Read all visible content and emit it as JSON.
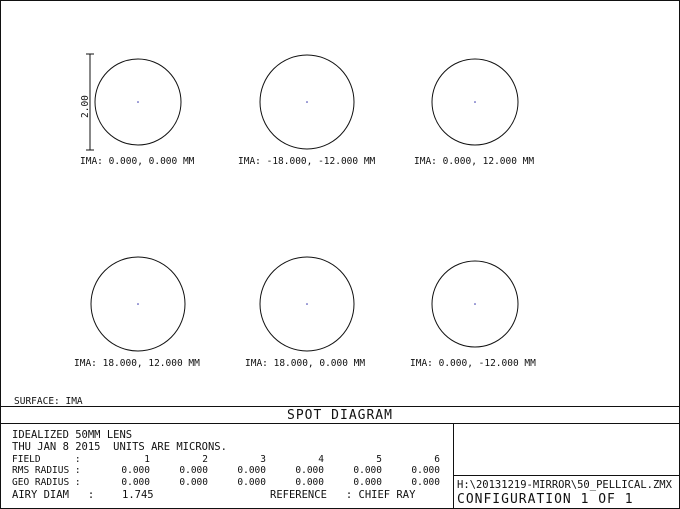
{
  "spots": [
    {
      "label": "IMA: 0.000, 0.000 MM"
    },
    {
      "label": "IMA: -18.000, -12.000 MM"
    },
    {
      "label": "IMA: 0.000, 12.000 MM"
    },
    {
      "label": "IMA: 18.000, 12.000 MM"
    },
    {
      "label": "IMA: 18.000, 0.000 MM"
    },
    {
      "label": "IMA: 0.000, -12.000 MM"
    }
  ],
  "scale_bar": {
    "label": "2.00"
  },
  "surface": "SURFACE: IMA",
  "title": "SPOT DIAGRAM",
  "info": {
    "lens": "IDEALIZED 50MM LENS",
    "date_units": "THU JAN 8 2015  UNITS ARE MICRONS.",
    "field_label": "FIELD      :",
    "fields": [
      "1",
      "2",
      "3",
      "4",
      "5",
      "6"
    ],
    "rms_label": "RMS RADIUS :",
    "rms": [
      "0.000",
      "0.000",
      "0.000",
      "0.000",
      "0.000",
      "0.000"
    ],
    "geo_label": "GEO RADIUS :",
    "geo": [
      "0.000",
      "0.000",
      "0.000",
      "0.000",
      "0.000",
      "0.000"
    ],
    "airy_label": "AIRY DIAM   :",
    "airy": "1.745",
    "reference": "REFERENCE   : CHIEF RAY"
  },
  "file": "H:\\20131219-MIRROR\\50_PELLICAL.ZMX",
  "configuration": "CONFIGURATION 1 OF 1",
  "colors": {
    "line": "#111111",
    "spot": "#3333aa"
  }
}
